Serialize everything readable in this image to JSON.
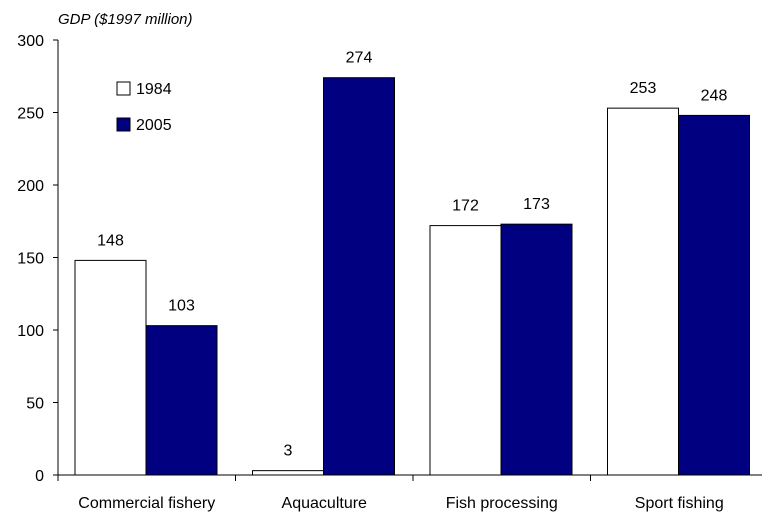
{
  "chart_data": {
    "type": "bar",
    "title": "GDP ($1997 million)",
    "xlabel": "",
    "ylabel": "",
    "categories": [
      "Commercial fishery",
      "Aquaculture",
      "Fish processing",
      "Sport fishing"
    ],
    "series": [
      {
        "name": "1984",
        "values": [
          148,
          3,
          172,
          253
        ]
      },
      {
        "name": "2005",
        "values": [
          103,
          274,
          173,
          248
        ]
      }
    ],
    "ylim": [
      0,
      300
    ],
    "yticks": [
      0,
      50,
      100,
      150,
      200,
      250,
      300
    ],
    "ytick_labels": [
      "0",
      "50",
      "100",
      "150",
      "200",
      "250",
      "300"
    ],
    "grid": false,
    "legend_position": "top-left",
    "colors": {
      "1984": "#ffffff",
      "2005": "#000080",
      "stroke": "#000000"
    }
  }
}
